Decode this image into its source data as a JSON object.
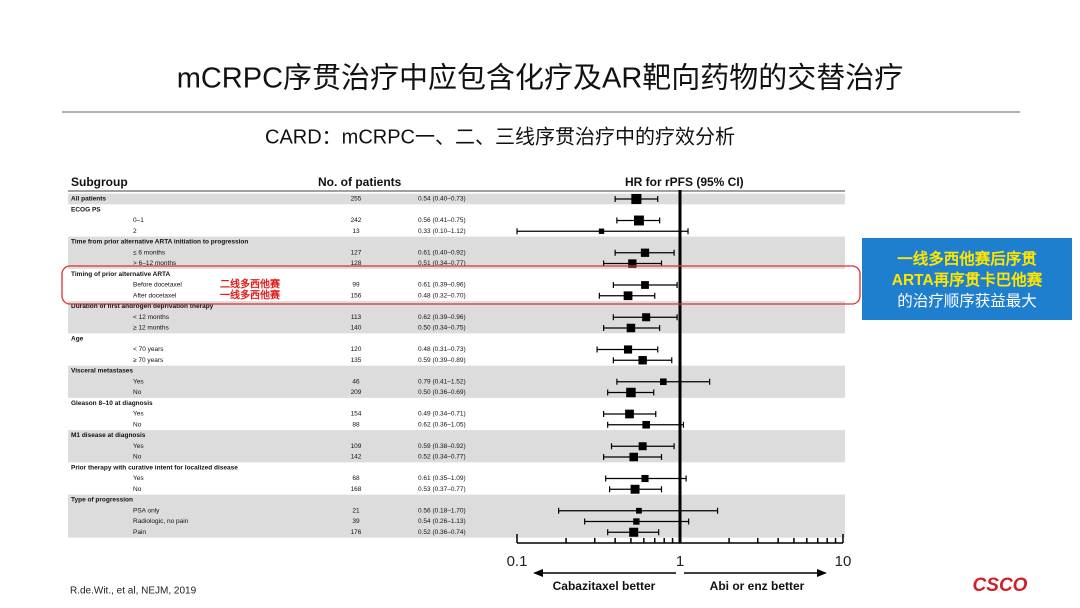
{
  "slide": {
    "title": "mCRPC序贯治疗中应包含化疗及AR靶向药物的交替治疗",
    "subtitle": "CARD：mCRPC一、二、三线序贯治疗中的疗效分析",
    "annotations": [
      "二线多西他赛",
      "一线多西他赛"
    ],
    "callout": [
      "一线多西他赛后序贯",
      "ARTA再序贯卡巴他赛",
      "的治疗顺序获益最大"
    ],
    "footnote": "R.de.Wit., et al, NEJM, 2019",
    "logo": "CSCO"
  },
  "chart_data": {
    "type": "forest",
    "column_headers": [
      "Subgroup",
      "No. of patients",
      "HR for rPFS (95% CI)"
    ],
    "categories": [
      "All patients",
      "ECOG PS",
      "0–1",
      "2",
      "Time from prior alternative ARTA initiation to progression",
      "≤ 6 months",
      "> 6–12 months",
      "Timing of prior alternative ARTA",
      "Before docetaxel",
      "After docetaxel",
      "Duration of first androgen deprivation therapy",
      "< 12 months",
      "≥ 12 months",
      "Age",
      "< 70 years",
      "≥ 70 years",
      "Visceral metastases",
      "Yes",
      "No",
      "Gleason 8–10 at diagnosis",
      "Yes",
      "No",
      "M1 disease at diagnosis",
      "Yes",
      "No",
      "Prior therapy with curative intent for localized disease",
      "Yes",
      "No",
      "Type of progression",
      "PSA only",
      "Radiologic, no pain",
      "Pain"
    ],
    "level": [
      0,
      0,
      1,
      1,
      0,
      1,
      1,
      0,
      1,
      1,
      0,
      1,
      1,
      0,
      1,
      1,
      0,
      1,
      1,
      0,
      1,
      1,
      0,
      1,
      1,
      0,
      1,
      1,
      0,
      1,
      1,
      1
    ],
    "n": [
      255,
      null,
      242,
      13,
      null,
      127,
      128,
      null,
      99,
      156,
      null,
      113,
      140,
      null,
      120,
      135,
      null,
      46,
      209,
      null,
      154,
      88,
      null,
      109,
      142,
      null,
      68,
      168,
      null,
      21,
      39,
      176
    ],
    "values": [
      0.54,
      null,
      0.56,
      0.33,
      null,
      0.61,
      0.51,
      null,
      0.61,
      0.48,
      null,
      0.62,
      0.5,
      null,
      0.48,
      0.59,
      null,
      0.79,
      0.5,
      null,
      0.49,
      0.62,
      null,
      0.59,
      0.52,
      null,
      0.61,
      0.53,
      null,
      0.56,
      0.54,
      0.52
    ],
    "ci_low": [
      0.4,
      null,
      0.41,
      0.1,
      null,
      0.4,
      0.34,
      null,
      0.39,
      0.32,
      null,
      0.39,
      0.34,
      null,
      0.31,
      0.39,
      null,
      0.41,
      0.36,
      null,
      0.34,
      0.36,
      null,
      0.38,
      0.34,
      null,
      0.35,
      0.37,
      null,
      0.18,
      0.26,
      0.36
    ],
    "ci_high": [
      0.73,
      null,
      0.75,
      1.12,
      null,
      0.92,
      0.77,
      null,
      0.96,
      0.7,
      null,
      0.96,
      0.75,
      null,
      0.73,
      0.89,
      null,
      1.52,
      0.69,
      null,
      0.71,
      1.05,
      null,
      0.92,
      0.77,
      null,
      1.09,
      0.77,
      null,
      1.7,
      1.13,
      0.74
    ],
    "value_labels": [
      "0.54 (0.40–0.73)",
      null,
      "0.56 (0.41–0.75)",
      "0.33 (0.10–1.12)",
      null,
      "0.61 (0.40–0.92)",
      "0.51 (0.34–0.77)",
      null,
      "0.61 (0.39–0.96)",
      "0.48 (0.32–0.70)",
      null,
      "0.62 (0.39–0.96)",
      "0.50 (0.34–0.75)",
      null,
      "0.48 (0.31–0.73)",
      "0.59 (0.39–0.89)",
      null,
      "0.79 (0.41–1.52)",
      "0.50 (0.36–0.69)",
      null,
      "0.49 (0.34–0.71)",
      "0.62 (0.36–1.05)",
      null,
      "0.59 (0.38–0.92)",
      "0.52 (0.34–0.77)",
      null,
      "0.61 (0.35–1.09)",
      "0.53 (0.37–0.77)",
      null,
      "0.56 (0.18–1.70)",
      "0.54 (0.26–1.13)",
      "0.52 (0.36–0.74)"
    ],
    "xscale": "log",
    "xlim": [
      0.1,
      10
    ],
    "xticks": [
      0.1,
      1,
      10
    ],
    "minor_xticks": [
      0.2,
      0.3,
      0.4,
      0.5,
      0.6,
      0.7,
      0.8,
      0.9,
      2,
      3,
      4,
      5,
      6,
      7,
      8,
      9
    ],
    "reference_line": 1,
    "xlabel_left": "Cabazitaxel better",
    "xlabel_right": "Abi or enz better",
    "color": "#000000",
    "band_color": "#dcdcdc"
  }
}
